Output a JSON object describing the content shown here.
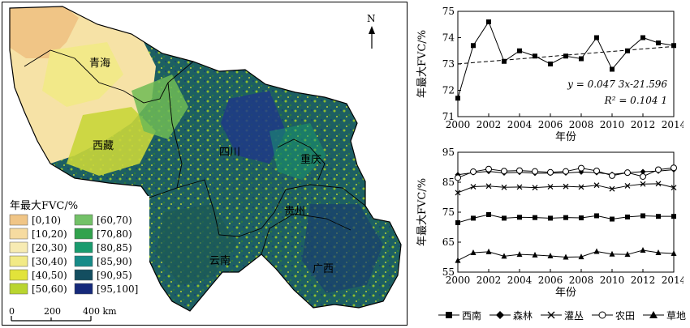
{
  "map": {
    "provinces": [
      "青海",
      "西藏",
      "四川",
      "重庆",
      "贵州",
      "云南",
      "广西"
    ],
    "north_label": "N",
    "legend_title": "年最大FVC/%",
    "legend_classes": [
      {
        "label": "[0,10)",
        "color": "#f0c586"
      },
      {
        "label": "[10,20)",
        "color": "#f6dba0"
      },
      {
        "label": "[20,30)",
        "color": "#f7ebb3"
      },
      {
        "label": "[30,40)",
        "color": "#f2ea86"
      },
      {
        "label": "[40,50)",
        "color": "#e2e33a"
      },
      {
        "label": "[50,60)",
        "color": "#b9d530"
      },
      {
        "label": "[60,70)",
        "color": "#73c168"
      },
      {
        "label": "[70,80)",
        "color": "#31a24c"
      },
      {
        "label": "[80,85)",
        "color": "#1a9b6e"
      },
      {
        "label": "[85,90)",
        "color": "#178b88"
      },
      {
        "label": "[90,95)",
        "color": "#134e60"
      },
      {
        "label": "[95,100]",
        "color": "#15297a"
      }
    ],
    "scale_labels": [
      "0",
      "200",
      "400 km"
    ]
  },
  "chart_data": [
    {
      "type": "line",
      "x": [
        2000,
        2001,
        2002,
        2003,
        2004,
        2005,
        2006,
        2007,
        2008,
        2009,
        2010,
        2011,
        2012,
        2013,
        2014
      ],
      "series": [
        {
          "values": [
            71.7,
            73.7,
            74.6,
            73.1,
            73.5,
            73.3,
            73.0,
            73.3,
            73.2,
            74.0,
            72.8,
            73.5,
            74.0,
            73.8,
            73.7
          ]
        }
      ],
      "trend": {
        "slope": 0.0473,
        "intercept": -21.596
      },
      "annotation": [
        "y = 0.047 3x-21.596",
        "R² = 0.104 1"
      ],
      "xlabel": "年份",
      "ylabel": "年最大FVC/%",
      "xlim": [
        2000,
        2014
      ],
      "ylim": [
        71,
        75
      ],
      "xticks": [
        "2000",
        "2002",
        "2004",
        "2006",
        "2008",
        "2010",
        "2012",
        "2014"
      ],
      "yticks": [
        "71",
        "72",
        "73",
        "74",
        "75"
      ]
    },
    {
      "type": "line",
      "x": [
        2000,
        2001,
        2002,
        2003,
        2004,
        2005,
        2006,
        2007,
        2008,
        2009,
        2010,
        2011,
        2012,
        2013,
        2014
      ],
      "series": [
        {
          "name": "西南",
          "marker": "square",
          "values": [
            71.5,
            73.0,
            74.2,
            73.0,
            73.3,
            73.2,
            73.0,
            73.2,
            73.1,
            73.8,
            72.7,
            73.4,
            73.8,
            73.6,
            73.6
          ]
        },
        {
          "name": "森林",
          "marker": "diamond",
          "values": [
            87.5,
            88.2,
            88.6,
            88.1,
            88.3,
            88.0,
            88.0,
            88.1,
            88.4,
            88.2,
            87.6,
            88.2,
            88.5,
            88.7,
            89.2
          ]
        },
        {
          "name": "灌丛",
          "marker": "cross",
          "values": [
            81.5,
            83.5,
            83.7,
            83.3,
            83.4,
            83.2,
            83.5,
            83.6,
            83.4,
            84.0,
            82.8,
            83.8,
            84.4,
            84.5,
            83.2
          ]
        },
        {
          "name": "农田",
          "marker": "circle",
          "values": [
            86.5,
            88.5,
            89.4,
            88.7,
            88.9,
            88.6,
            88.3,
            88.6,
            89.7,
            88.8,
            87.2,
            88.2,
            86.9,
            89.2,
            89.8
          ]
        },
        {
          "name": "草地",
          "marker": "triangle",
          "values": [
            58.9,
            61.5,
            61.8,
            60.3,
            60.9,
            60.7,
            60.4,
            60.0,
            60.1,
            61.9,
            61.0,
            60.9,
            62.3,
            61.5,
            61.2
          ]
        }
      ],
      "xlabel": "年份",
      "ylabel": "年最大FVC/%",
      "xlim": [
        2000,
        2014
      ],
      "ylim": [
        55,
        95
      ],
      "xticks": [
        "2000",
        "2002",
        "2004",
        "2006",
        "2008",
        "2010",
        "2012",
        "2014"
      ],
      "yticks": [
        "55",
        "65",
        "75",
        "85",
        "95"
      ]
    }
  ]
}
